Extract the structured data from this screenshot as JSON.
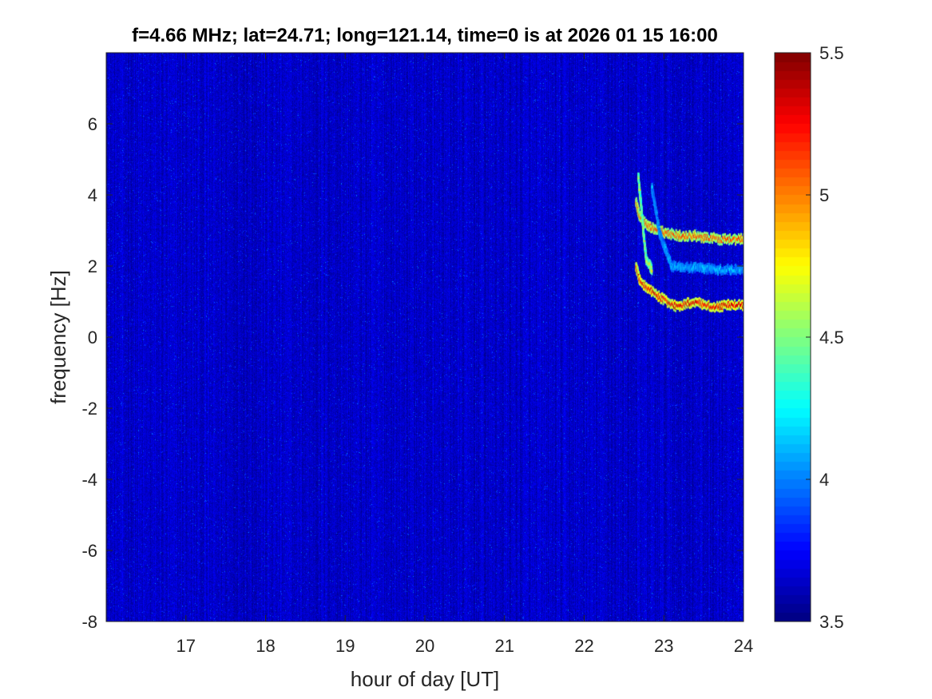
{
  "chart_data": {
    "type": "heatmap",
    "title": "f=4.66 MHz;  lat=24.71; long=121.14, time=0 is at 2026 01 15 16:00",
    "xlabel": "hour of day [UT]",
    "ylabel": "frequency [Hz]",
    "xlim": [
      16,
      24
    ],
    "ylim": [
      -8,
      8
    ],
    "xticks": [
      17,
      18,
      19,
      20,
      21,
      22,
      23,
      24
    ],
    "yticks": [
      -8,
      -6,
      -4,
      -2,
      0,
      2,
      4,
      6
    ],
    "colorbar": {
      "colormap": "jet",
      "clim": [
        3.5,
        5.5
      ],
      "ticks": [
        3.5,
        4,
        4.5,
        5,
        5.5
      ]
    },
    "background_level": 3.5,
    "traces": [
      {
        "points": [
          [
            22.65,
            2.0
          ],
          [
            22.7,
            1.6
          ],
          [
            22.8,
            1.35
          ],
          [
            22.9,
            1.2
          ],
          [
            23.0,
            1.05
          ],
          [
            23.1,
            0.9
          ],
          [
            23.2,
            0.85
          ],
          [
            23.3,
            0.95
          ],
          [
            23.4,
            1.0
          ],
          [
            23.5,
            0.9
          ],
          [
            23.6,
            0.85
          ],
          [
            23.7,
            0.85
          ],
          [
            23.8,
            0.9
          ],
          [
            23.9,
            0.9
          ],
          [
            24.0,
            0.9
          ]
        ],
        "peak_level": 5.4
      },
      {
        "points": [
          [
            22.65,
            3.8
          ],
          [
            22.7,
            3.4
          ],
          [
            22.8,
            3.15
          ],
          [
            22.9,
            3.0
          ],
          [
            23.0,
            2.95
          ],
          [
            23.1,
            2.9
          ],
          [
            23.2,
            2.85
          ],
          [
            23.3,
            2.85
          ],
          [
            23.4,
            2.85
          ],
          [
            23.5,
            2.8
          ],
          [
            23.6,
            2.8
          ],
          [
            23.7,
            2.75
          ],
          [
            23.8,
            2.75
          ],
          [
            23.9,
            2.75
          ],
          [
            24.0,
            2.75
          ]
        ],
        "peak_level": 5.2
      },
      {
        "points": [
          [
            22.68,
            4.5
          ],
          [
            22.72,
            3.6
          ],
          [
            22.75,
            2.8
          ],
          [
            22.78,
            2.2
          ],
          [
            22.85,
            1.9
          ]
        ],
        "peak_level": 4.9
      },
      {
        "points": [
          [
            22.85,
            4.2
          ],
          [
            22.95,
            2.9
          ],
          [
            23.1,
            2.0
          ],
          [
            23.4,
            1.95
          ],
          [
            23.7,
            1.9
          ],
          [
            24.0,
            1.9
          ]
        ],
        "peak_level": 4.2
      }
    ]
  }
}
